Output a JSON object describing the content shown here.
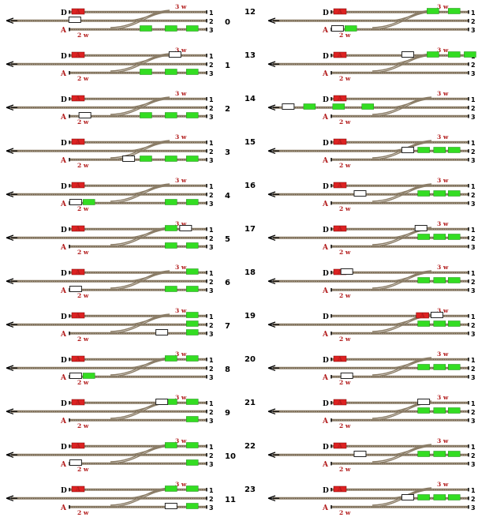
{
  "colors": {
    "wagon": "#33dd22",
    "wagon_stroke": "#1a8a12",
    "loco": "#ffffff",
    "loco_stroke": "#222222",
    "signal": "#dd2222",
    "label_red": "#b21b1b"
  },
  "labels": {
    "top_left": "D",
    "bottom_left": "A",
    "top_capacity": "3 w",
    "bottom_capacity": "2 w",
    "tracks": [
      "1",
      "2",
      "3"
    ]
  },
  "steps": [
    {
      "n": "0",
      "loco": [
        0,
        0.29
      ],
      "greens": [
        [
          3,
          0.58
        ],
        [
          3,
          0.77
        ],
        [
          3,
          0.93
        ]
      ]
    },
    {
      "n": "1",
      "loco": [
        1,
        0.8
      ],
      "greens": [
        [
          3,
          0.58
        ],
        [
          3,
          0.77
        ],
        [
          3,
          0.93
        ]
      ]
    },
    {
      "n": "2",
      "loco": [
        3,
        0.12
      ],
      "greens": [
        [
          3,
          0.58
        ],
        [
          3,
          0.77
        ],
        [
          3,
          0.93
        ]
      ]
    },
    {
      "n": "3",
      "loco": [
        3,
        0.45
      ],
      "greens": [
        [
          3,
          0.58
        ],
        [
          3,
          0.77
        ],
        [
          3,
          0.93
        ]
      ]
    },
    {
      "n": "4",
      "loco": [
        3,
        0.05
      ],
      "greens": [
        [
          3,
          0.15
        ],
        [
          3,
          0.77
        ],
        [
          3,
          0.93
        ]
      ]
    },
    {
      "n": "5",
      "loco": [
        1,
        0.88
      ],
      "greens": [
        [
          1,
          0.77
        ],
        [
          3,
          0.77
        ],
        [
          3,
          0.93
        ]
      ]
    },
    {
      "n": "6",
      "loco": [
        3,
        0.05
      ],
      "greens": [
        [
          1,
          0.93
        ],
        [
          3,
          0.77
        ],
        [
          3,
          0.93
        ]
      ]
    },
    {
      "n": "7",
      "loco": [
        3,
        0.7
      ],
      "greens": [
        [
          1,
          0.93
        ],
        [
          2,
          0.93
        ],
        [
          3,
          0.93
        ]
      ]
    },
    {
      "n": "8",
      "loco": [
        3,
        0.05
      ],
      "greens": [
        [
          1,
          0.77
        ],
        [
          1,
          0.93
        ],
        [
          3,
          0.15
        ]
      ]
    },
    {
      "n": "9",
      "loco": [
        1,
        0.7
      ],
      "greens": [
        [
          1,
          0.77
        ],
        [
          1,
          0.93
        ],
        [
          3,
          0.93
        ]
      ]
    },
    {
      "n": "10",
      "loco": [
        3,
        0.05
      ],
      "greens": [
        [
          1,
          0.77
        ],
        [
          1,
          0.93
        ],
        [
          3,
          0.93
        ]
      ]
    },
    {
      "n": "11",
      "loco": [
        3,
        0.77
      ],
      "greens": [
        [
          1,
          0.77
        ],
        [
          1,
          0.93
        ],
        [
          3,
          0.93
        ]
      ]
    },
    {
      "n": "12",
      "loco": [
        3,
        0.05
      ],
      "greens": [
        [
          1,
          0.77
        ],
        [
          1,
          0.93
        ],
        [
          3,
          0.15
        ]
      ]
    },
    {
      "n": "13",
      "loco": [
        1,
        0.58
      ],
      "greens": [
        [
          1,
          0.77
        ],
        [
          1,
          0.93
        ],
        [
          1,
          1.05
        ]
      ]
    },
    {
      "n": "14",
      "loco": [
        0,
        0.04
      ],
      "greens": [
        [
          0,
          0.15
        ],
        [
          0,
          0.3
        ],
        [
          0,
          0.45
        ]
      ]
    },
    {
      "n": "15",
      "loco": [
        2,
        0.58
      ],
      "greens": [
        [
          2,
          0.7
        ],
        [
          2,
          0.82
        ],
        [
          2,
          0.93
        ]
      ]
    },
    {
      "n": "16",
      "loco": [
        2,
        0.22
      ],
      "greens": [
        [
          2,
          0.7
        ],
        [
          2,
          0.82
        ],
        [
          2,
          0.93
        ]
      ]
    },
    {
      "n": "17",
      "loco": [
        1,
        0.68
      ],
      "greens": [
        [
          2,
          0.7
        ],
        [
          2,
          0.82
        ],
        [
          2,
          0.93
        ]
      ]
    },
    {
      "n": "18",
      "loco": [
        1,
        0.12
      ],
      "greens": [
        [
          2,
          0.7
        ],
        [
          2,
          0.82
        ],
        [
          2,
          0.93
        ]
      ]
    },
    {
      "n": "19",
      "loco": [
        1,
        0.8
      ],
      "greens": [
        [
          2,
          0.7
        ],
        [
          2,
          0.82
        ],
        [
          2,
          0.93
        ]
      ],
      "signal_top": 0.7
    },
    {
      "n": "20",
      "loco": [
        3,
        0.12
      ],
      "greens": [
        [
          2,
          0.7
        ],
        [
          2,
          0.82
        ],
        [
          2,
          0.93
        ]
      ]
    },
    {
      "n": "21",
      "loco": [
        1,
        0.7
      ],
      "greens": [
        [
          2,
          0.7
        ],
        [
          2,
          0.82
        ],
        [
          2,
          0.93
        ]
      ]
    },
    {
      "n": "22",
      "loco": [
        2,
        0.22
      ],
      "greens": [
        [
          2,
          0.7
        ],
        [
          2,
          0.82
        ],
        [
          2,
          0.93
        ]
      ]
    },
    {
      "n": "23",
      "loco": [
        2,
        0.58
      ],
      "greens": [
        [
          2,
          0.7
        ],
        [
          2,
          0.82
        ],
        [
          2,
          0.93
        ]
      ]
    }
  ]
}
